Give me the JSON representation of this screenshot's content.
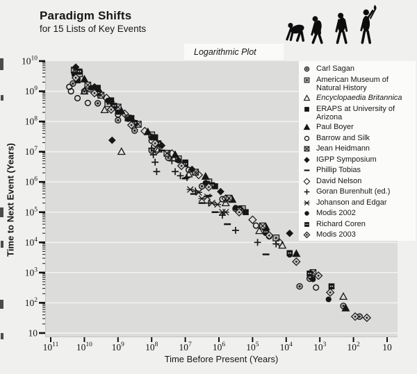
{
  "page": {
    "title": "Paradigm Shifts",
    "subtitle": "for 15 Lists of Key Events",
    "plot_type_label": "Logarithmic Plot",
    "graphic_icon": "human-evolution-march-silhouettes"
  },
  "axes": {
    "x_label": "Time Before Present (Years)",
    "y_label": "Time to Next Event (Years)",
    "x_tick_exponents": [
      11,
      10,
      9,
      8,
      7,
      6,
      5,
      4,
      3,
      2,
      1
    ],
    "y_tick_exponents": [
      10,
      9,
      8,
      7,
      6,
      5,
      4,
      3,
      2,
      1
    ]
  },
  "colors": {
    "marker_dark": "#161616",
    "marker_gray": "#a8a8a8",
    "plot_bg": "#dcdcda",
    "gridline": "#f4f4f2",
    "legend_bg": "#fbfbf9"
  },
  "legend": {
    "entries": [
      {
        "label": "Carl Sagan",
        "marker": "circle-dot",
        "italic": false
      },
      {
        "label": "American Museum of\nNatural History",
        "marker": "square-dot",
        "italic": false
      },
      {
        "label": "Encyclopaedia Britannica",
        "marker": "triangle-open",
        "italic": true
      },
      {
        "label": "ERAPS at University of\nArizona",
        "marker": "square-filled",
        "italic": false
      },
      {
        "label": "Paul Boyer",
        "marker": "triangle-filled",
        "italic": false
      },
      {
        "label": "Barrow and Silk",
        "marker": "circle-open",
        "italic": false
      },
      {
        "label": "Jean Heidmann",
        "marker": "square-x",
        "italic": false
      },
      {
        "label": "IGPP Symposium",
        "marker": "diamond-filled",
        "italic": false
      },
      {
        "label": "Phillip Tobias",
        "marker": "dash",
        "italic": false
      },
      {
        "label": "David Nelson",
        "marker": "diamond-open",
        "italic": false
      },
      {
        "label": "Goran Burenhult (ed.)",
        "marker": "plus",
        "italic": false
      },
      {
        "label": "Johanson and Edgar",
        "marker": "asterisk",
        "italic": false
      },
      {
        "label": "Modis 2002",
        "marker": "circle-filled",
        "italic": false
      },
      {
        "label": "Richard Coren",
        "marker": "square-pattern",
        "italic": false
      },
      {
        "label": "Modis 2003",
        "marker": "diamond-dot",
        "italic": false
      }
    ]
  },
  "chart_data": {
    "type": "scatter",
    "title": "Paradigm Shifts for 15 Lists of Key Events",
    "subtitle": "Logarithmic Plot",
    "xlabel": "Time Before Present (Years)",
    "ylabel": "Time to Next Event (Years)",
    "x_scale": "log",
    "y_scale": "log",
    "x_axis_reversed": true,
    "xlim": [
      100000000000.0,
      10
    ],
    "ylim": [
      10,
      10000000000.0
    ],
    "grid": "horizontal-white-lines-per-decade",
    "legend_position": "upper-right-inside",
    "series": [
      {
        "name": "Carl Sagan",
        "marker": "circle-dot",
        "points": [
          [
            22000000000.0,
            1800000000.0
          ],
          [
            10000000000.0,
            1000000000.0
          ],
          [
            4000000000.0,
            400000000.0
          ],
          [
            1000000000.0,
            110000000.0
          ],
          [
            320000000.0,
            50000000.0
          ],
          [
            100000000.0,
            11000000.0
          ],
          [
            32000000.0,
            6300000.0
          ],
          [
            3200000.0,
            720000.0
          ],
          [
            320000.0,
            130000.0
          ],
          [
            32000.0,
            16000.0
          ],
          [
            4000.0,
            350.0
          ],
          [
            2000.0,
            630.0
          ],
          [
            200.0,
            79
          ],
          [
            66,
            35
          ]
        ]
      },
      {
        "name": "American Museum of Natural History",
        "marker": "square-dot",
        "points": [
          [
            14000000000.0,
            3800000000.0
          ],
          [
            6300000000.0,
            1200000000.0
          ],
          [
            2000000000.0,
            390000000.0
          ],
          [
            500000000.0,
            130000000.0
          ],
          [
            100000000.0,
            36000000.0
          ],
          [
            16000000.0,
            5800000.0
          ],
          [
            2000000.0,
            1000000.0
          ],
          [
            200000.0,
            130000.0
          ],
          [
            20000.0,
            14000.0
          ]
        ]
      },
      {
        "name": "Encyclopaedia Britannica",
        "marker": "triangle-open",
        "points": [
          [
            10000000000.0,
            1000000000.0
          ],
          [
            2500000000.0,
            240000000.0
          ],
          [
            790000000.0,
            10000000.0
          ],
          [
            63000000.0,
            12000000.0
          ],
          [
            7900000.0,
            1800000.0
          ],
          [
            630000.0,
            200000.0
          ],
          [
            63000.0,
            24000.0
          ],
          [
            13000.0,
            7900.0
          ],
          [
            200.0,
            160.0
          ]
        ]
      },
      {
        "name": "ERAPS at University of Arizona",
        "marker": "square-filled",
        "points": [
          [
            16000000000.0,
            2300000000.0
          ],
          [
            4000000000.0,
            1300000000.0
          ],
          [
            1600000000.0,
            500000000.0
          ],
          [
            1000000000.0,
            210000000.0
          ],
          [
            400000000.0,
            130000000.0
          ],
          [
            79000000.0,
            30000000.0
          ],
          [
            10000000.0,
            4400000.0
          ],
          [
            1300000.0,
            720000.0
          ],
          [
            160000.0,
            100000.0
          ]
        ]
      },
      {
        "name": "Paul Boyer",
        "marker": "triangle-filled",
        "points": [
          [
            10000000000.0,
            2500000000.0
          ],
          [
            3200000000.0,
            830000000.0
          ],
          [
            790000000.0,
            220000000.0
          ],
          [
            130000000.0,
            45000000.0
          ],
          [
            20000000.0,
            7900000.0
          ],
          [
            2500000.0,
            1500000.0
          ],
          [
            400000.0,
            260000.0
          ],
          [
            40000.0,
            32000.0
          ],
          [
            5000.0,
            4200.0
          ],
          [
            170.0,
            66
          ]
        ]
      },
      {
        "name": "Barrow and Silk",
        "marker": "circle-open",
        "points": [
          [
            28000000000.0,
            1400000000.0
          ],
          [
            25000000000.0,
            1000000000.0
          ],
          [
            16000000000.0,
            590000000.0
          ],
          [
            7900000000.0,
            410000000.0
          ],
          [
            1000000000.0,
            170000000.0
          ],
          [
            100000000.0,
            23000000.0
          ],
          [
            7900000.0,
            2500000.0
          ],
          [
            790000.0,
            270000.0
          ],
          [
            79000.0,
            36000.0
          ],
          [
            1300.0,
            320.0
          ]
        ]
      },
      {
        "name": "Jean Heidmann",
        "marker": "square-x",
        "points": [
          [
            20000000000.0,
            5000000000.0
          ],
          [
            7900000000.0,
            1600000000.0
          ],
          [
            3200000000.0,
            740000000.0
          ],
          [
            1000000000.0,
            300000000.0
          ],
          [
            250000000.0,
            81000000.0
          ],
          [
            35000000.0,
            8900000.0
          ],
          [
            5000000.0,
            2100000.0
          ],
          [
            500000.0,
            290000.0
          ],
          [
            50000.0,
            35000.0
          ],
          [
            1600.0,
            1000.0
          ]
        ]
      },
      {
        "name": "IGPP Symposium",
        "marker": "diamond-filled",
        "points": [
          [
            18000000000.0,
            6300000000.0
          ],
          [
            5000000000.0,
            1400000000.0
          ],
          [
            1600000000.0,
            450000000.0
          ],
          [
            1500000000.0,
            24000000.0
          ],
          [
            320000000.0,
            89000000.0
          ],
          [
            50000000.0,
            16000000.0
          ],
          [
            6300000.0,
            2600000.0
          ],
          [
            890000.0,
            480000.0
          ],
          [
            7900.0,
            20000.0
          ]
        ]
      },
      {
        "name": "Phillip Tobias",
        "marker": "dash",
        "points": [
          [
            50000000.0,
            11000000.0
          ],
          [
            10000000.0,
            1300000.0
          ],
          [
            5600000.0,
            400000.0
          ],
          [
            3200000.0,
            200000.0
          ],
          [
            2000000.0,
            350000.0
          ],
          [
            1300000.0,
            100000.0
          ],
          [
            560000.0,
            40000.0
          ],
          [
            40000.0,
            4000.0
          ]
        ]
      },
      {
        "name": "David Nelson",
        "marker": "diamond-open",
        "points": [
          [
            2200000000.0,
            600000000.0
          ],
          [
            630000000.0,
            180000000.0
          ],
          [
            160000000.0,
            48000000.0
          ],
          [
            71000000.0,
            11000000.0
          ],
          [
            25000000.0,
            8700000.0
          ],
          [
            4000000.0,
            1700000.0
          ],
          [
            630000.0,
            280000.0
          ],
          [
            100000.0,
            56000.0
          ],
          [
            16000.0,
            10000.0
          ],
          [
            1800.0,
            710.0
          ]
        ]
      },
      {
        "name": "Goran Burenhult (ed.)",
        "marker": "plus",
        "points": [
          [
            100000000.0,
            13000000.0
          ],
          [
            89000000.0,
            7900000.0
          ],
          [
            79000000.0,
            4500000.0
          ],
          [
            71000000.0,
            2200000.0
          ],
          [
            25000000.0,
            5000000.0
          ],
          [
            20000000.0,
            2200000.0
          ],
          [
            14000000.0,
            1600000.0
          ],
          [
            8900000.0,
            1400000.0
          ],
          [
            5000000.0,
            500000.0
          ],
          [
            2000000.0,
            200000.0
          ],
          [
            790000.0,
            79000.0
          ],
          [
            320000.0,
            25000.0
          ],
          [
            71000.0,
            10000.0
          ],
          [
            20000.0,
            8900.0
          ]
        ]
      },
      {
        "name": "Johanson and Edgar",
        "marker": "asterisk",
        "points": [
          [
            7100000.0,
            560000.0
          ],
          [
            4000000.0,
            450000.0
          ],
          [
            3200000.0,
            280000.0
          ],
          [
            2200000.0,
            320000.0
          ],
          [
            1600000.0,
            200000.0
          ],
          [
            1100000.0,
            180000.0
          ],
          [
            790000.0,
            100000.0
          ],
          [
            630000.0,
            100000.0
          ]
        ]
      },
      {
        "name": "Modis 2002",
        "marker": "circle-filled",
        "points": [
          [
            20000000000.0,
            3600000000.0
          ],
          [
            6300000000.0,
            1300000000.0
          ],
          [
            2000000000.0,
            490000000.0
          ],
          [
            500000000.0,
            120000000.0
          ],
          [
            100000000.0,
            29000000.0
          ],
          [
            16000000.0,
            5100000.0
          ],
          [
            2500000.0,
            930000.0
          ],
          [
            320000.0,
            140000.0
          ],
          [
            40000.0,
            20000.0
          ],
          [
            7900.0,
            3900.0
          ],
          [
            1600.0,
            600.0
          ],
          [
            550.0,
            130.0
          ]
        ]
      },
      {
        "name": "Richard Coren",
        "marker": "square-pattern",
        "points": [
          [
            14000000000.0,
            4500000000.0
          ],
          [
            4000000000.0,
            890000000.0
          ],
          [
            1300000000.0,
            330000000.0
          ],
          [
            320000000.0,
            89000000.0
          ],
          [
            63000000.0,
            19000000.0
          ],
          [
            10000000.0,
            3900000.0
          ],
          [
            1600000.0,
            780000.0
          ],
          [
            250000.0,
            130000.0
          ],
          [
            40000.0,
            22000.0
          ],
          [
            7900.0,
            4400.0
          ],
          [
            2000.0,
            930.0
          ],
          [
            450.0,
            350.0
          ]
        ]
      },
      {
        "name": "Modis 2003",
        "marker": "diamond-dot",
        "points": [
          [
            18000000000.0,
            2800000000.0
          ],
          [
            5000000000.0,
            870000000.0
          ],
          [
            1600000000.0,
            250000000.0
          ],
          [
            400000000.0,
            76000000.0
          ],
          [
            79000000.0,
            19000000.0
          ],
          [
            13000000.0,
            3400000.0
          ],
          [
            2000000.0,
            680000.0
          ],
          [
            250000.0,
            100000.0
          ],
          [
            32000.0,
            17000.0
          ],
          [
            5000.0,
            2300.0
          ],
          [
            1100.0,
            790.0
          ],
          [
            490.0,
            220.0
          ],
          [
            89,
            35
          ],
          [
            40,
            32
          ]
        ]
      }
    ]
  }
}
